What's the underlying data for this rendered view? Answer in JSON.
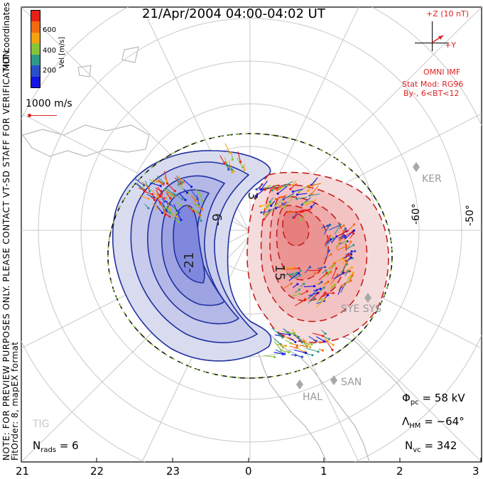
{
  "title": "21/Apr/2004 04:00-04:02 UT",
  "coord_system": "MLT coordinates",
  "warning": "NOTE: FOR PREVIEW PURPOSES ONLY. PLEASE CONTACT VT-SD STAFF FOR VERIFICATION.",
  "fit_info": "FitOrder: 8, mapEX format",
  "colorbar": {
    "label": "Vel [m/s]",
    "ticks": [
      "600",
      "400",
      "200"
    ],
    "colors": [
      "#e8201a",
      "#f06a10",
      "#f5a20f",
      "#86c43a",
      "#2e9a8a",
      "#2850c8",
      "#1414e6"
    ]
  },
  "reference_vector": {
    "label": "1000 m/s"
  },
  "imf": {
    "scale": "+Z (10 nT)",
    "axis_y": "+Y",
    "source": "OMNI IMF",
    "model": "Stat Mod: RG96",
    "condition": "By-, 6<BT<12"
  },
  "stations": [
    "KER",
    "SYE SYS",
    "SAN",
    "HAL",
    "TIG"
  ],
  "latitude_labels": [
    "-60°",
    "-50°"
  ],
  "contour_labels": [
    "-21",
    "-9",
    "15",
    "3"
  ],
  "mlt_ticks": [
    "21",
    "22",
    "23",
    "0",
    "1",
    "2",
    "3"
  ],
  "stats": {
    "n_rads_label": "N",
    "n_rads_sub": "rads",
    "n_rads_value": "= 6",
    "phi_label": "Φ",
    "phi_sub": "pc",
    "phi_value": "= 58 kV",
    "lambda_label": "Λ",
    "lambda_sub": "HM",
    "lambda_value": "= −64°",
    "nvc_label": "N",
    "nvc_sub": "vc",
    "nvc_value": "= 342"
  }
}
